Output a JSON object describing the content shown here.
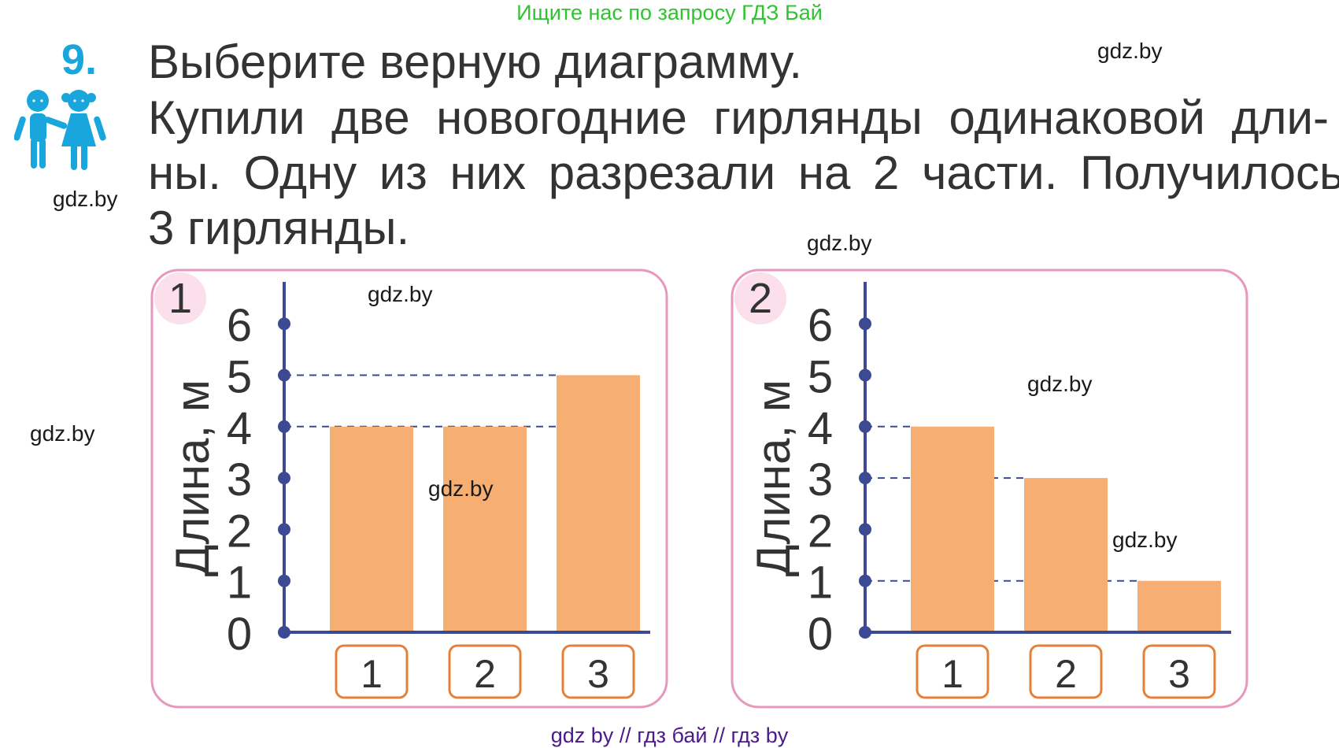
{
  "banner": "Ищите нас по запросу ГДЗ Бай",
  "task": {
    "number": "9.",
    "title": "Выберите верную диаграмму.",
    "body_lines": [
      "Купили две новогодние гирлянды одинаковой дли-",
      "ны. Одну из них разрезали на 2 части. Получилось",
      "3 гирлянды."
    ],
    "icon": "children-icon"
  },
  "watermarks": [
    "gdz.by",
    "gdz.by",
    "gdz.by",
    "gdz.by",
    "gdz.by",
    "gdz.by",
    "gdz.by",
    "gdz.by"
  ],
  "footer": "gdz by  //  гдз бай  //  гдз by",
  "colors": {
    "bar": "#f7ae72",
    "axis": "#3b4a93",
    "panel_border": "#e699bd",
    "panel_badge": "#fbe0ec",
    "category_box": "#e5803a",
    "task_number": "#19a6dc",
    "kids_icon": "#19a6dc",
    "banner": "#2fc42f",
    "footer": "#4b1a8c"
  },
  "chart_data": [
    {
      "type": "bar",
      "panel_label": "1",
      "ylabel": "Длина, м",
      "ylim": [
        0,
        6
      ],
      "yticks": [
        "0",
        "1",
        "2",
        "3",
        "4",
        "5",
        "6"
      ],
      "categories": [
        "1",
        "2",
        "3"
      ],
      "values": [
        4,
        4,
        5
      ],
      "guide_lines": [
        4,
        5
      ],
      "grid": false
    },
    {
      "type": "bar",
      "panel_label": "2",
      "ylabel": "Длина, м",
      "ylim": [
        0,
        6
      ],
      "yticks": [
        "0",
        "1",
        "2",
        "3",
        "4",
        "5",
        "6"
      ],
      "categories": [
        "1",
        "2",
        "3"
      ],
      "values": [
        4,
        3,
        1
      ],
      "guide_lines": [
        4,
        3,
        1
      ],
      "grid": false
    }
  ]
}
